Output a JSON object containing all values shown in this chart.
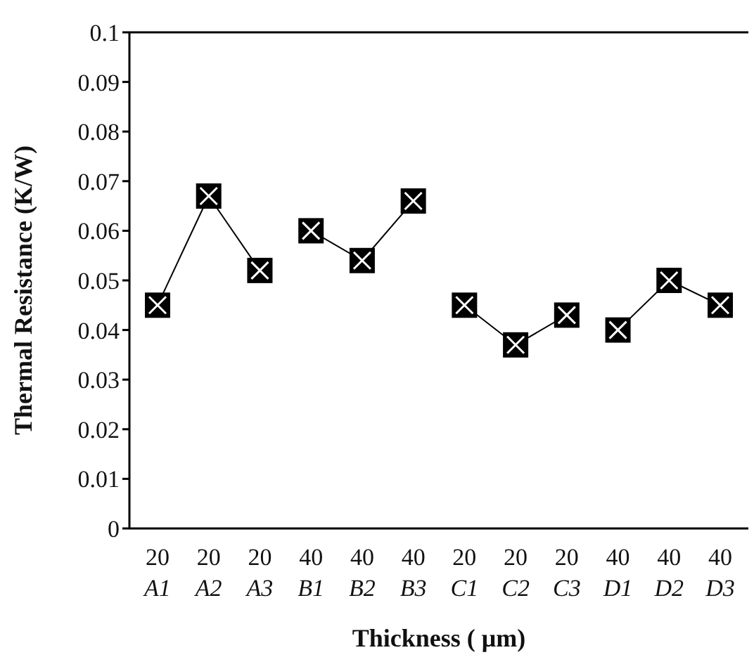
{
  "chart_data": {
    "type": "line",
    "xlabel": "Thickness ( μm)",
    "ylabel": "Thermal Resistance (K/W)",
    "categories": [
      "20\nA1",
      "20\nA2",
      "20\nA3",
      "40\nB1",
      "40\nB2",
      "40\nB3",
      "20\nC1",
      "20\nC2",
      "20\nC3",
      "40\nD1",
      "40\nD2",
      "40\nD3"
    ],
    "series": [
      {
        "color": "#000000",
        "values": [
          0.045,
          0.067,
          0.052,
          null,
          null,
          null,
          null,
          null,
          null,
          null,
          null,
          null
        ]
      },
      {
        "color": "#000000",
        "values": [
          null,
          null,
          null,
          0.06,
          0.054,
          0.066,
          null,
          null,
          null,
          null,
          null,
          null
        ]
      },
      {
        "color": "#000000",
        "values": [
          null,
          null,
          null,
          null,
          null,
          null,
          0.045,
          0.037,
          0.043,
          null,
          null,
          null
        ]
      },
      {
        "color": "#000000",
        "values": [
          null,
          null,
          null,
          null,
          null,
          null,
          null,
          null,
          null,
          0.04,
          0.05,
          0.045
        ]
      }
    ],
    "ylim": [
      0,
      0.1
    ],
    "yticks": [
      0,
      0.01,
      0.02,
      0.03,
      0.04,
      0.05,
      0.06,
      0.07,
      0.08,
      0.09,
      0.1
    ],
    "grid": false,
    "legend": false,
    "marker": "square",
    "line_style": "solid"
  }
}
